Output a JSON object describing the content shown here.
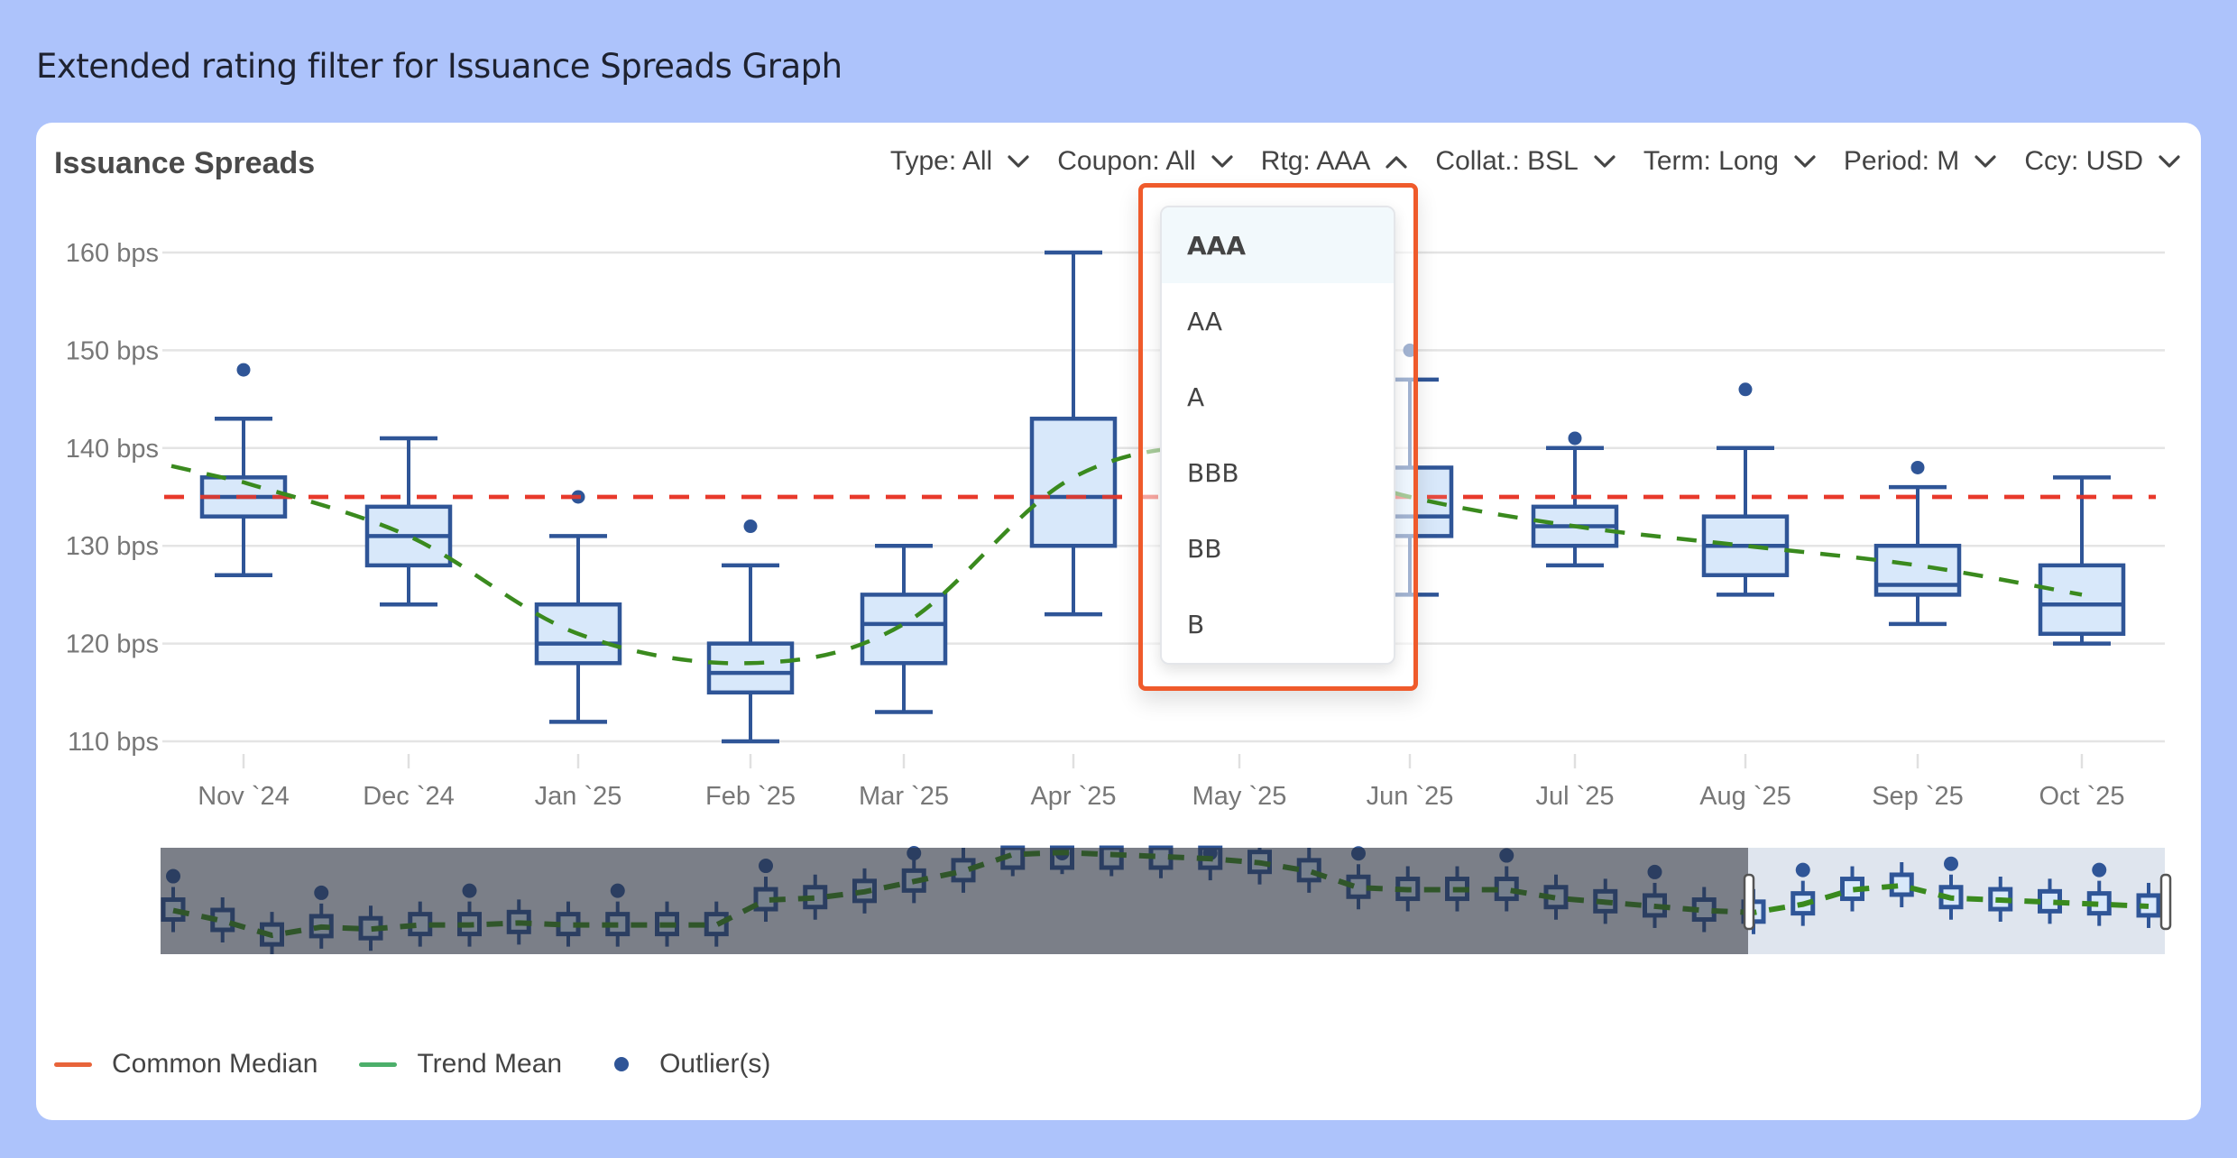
{
  "page": {
    "title": "Extended rating filter for Issuance Spreads Graph"
  },
  "card": {
    "title": "Issuance Spreads",
    "filters": [
      {
        "label": "Type: All",
        "icon": "chevron-down-icon",
        "open": false
      },
      {
        "label": "Coupon: All",
        "icon": "chevron-down-icon",
        "open": false
      },
      {
        "label": "Rtg: AAA",
        "icon": "chevron-up-icon",
        "open": true
      },
      {
        "label": "Collat.: BSL",
        "icon": "chevron-down-icon",
        "open": false
      },
      {
        "label": "Term: Long",
        "icon": "chevron-down-icon",
        "open": false
      },
      {
        "label": "Period: M",
        "icon": "chevron-down-icon",
        "open": false
      },
      {
        "label": "Ccy: USD",
        "icon": "chevron-down-icon",
        "open": false
      }
    ]
  },
  "rating_dropdown": {
    "selected": "AAA",
    "options": [
      "AAA",
      "AA",
      "A",
      "BBB",
      "BB",
      "B"
    ]
  },
  "legend": [
    {
      "label": "Common Median",
      "color": "#e8643a",
      "kind": "line"
    },
    {
      "label": "Trend Mean",
      "color": "#4caf6a",
      "kind": "line"
    },
    {
      "label": "Outlier(s)",
      "color": "#2f5597",
      "kind": "dot"
    }
  ],
  "chart_data": {
    "type": "boxplot",
    "title": "Issuance Spreads",
    "xlabel": "",
    "ylabel": "",
    "y_unit": "bps",
    "ylim": [
      110,
      160
    ],
    "yticks": [
      110,
      120,
      130,
      140,
      150,
      160
    ],
    "ytick_labels": [
      "110 bps",
      "120 bps",
      "130 bps",
      "140 bps",
      "150 bps",
      "160 bps"
    ],
    "grid": true,
    "categories": [
      "Nov `24",
      "Dec `24",
      "Jan `25",
      "Feb `25",
      "Mar `25",
      "Apr `25",
      "May `25",
      "Jun `25",
      "Jul `25",
      "Aug `25",
      "Sep `25",
      "Oct `25"
    ],
    "boxes": [
      {
        "category": "Nov `24",
        "min": 127,
        "q1": 133,
        "median": 135,
        "q3": 137,
        "max": 143,
        "outliers": [
          148
        ]
      },
      {
        "category": "Dec `24",
        "min": 124,
        "q1": 128,
        "median": 131,
        "q3": 134,
        "max": 141,
        "outliers": []
      },
      {
        "category": "Jan `25",
        "min": 112,
        "q1": 118,
        "median": 120,
        "q3": 124,
        "max": 131,
        "outliers": [
          135
        ]
      },
      {
        "category": "Feb `25",
        "min": 110,
        "q1": 115,
        "median": 117,
        "q3": 120,
        "max": 128,
        "outliers": [
          132
        ]
      },
      {
        "category": "Mar `25",
        "min": 113,
        "q1": 118,
        "median": 122,
        "q3": 125,
        "max": 130,
        "outliers": []
      },
      {
        "category": "Apr `25",
        "min": 123,
        "q1": 130,
        "median": 135,
        "q3": 143,
        "max": 160,
        "outliers": []
      },
      {
        "category": "May `25",
        "hidden": true
      },
      {
        "category": "Jun `25",
        "min": 125,
        "q1": 131,
        "median": 133,
        "q3": 138,
        "max": 147,
        "outliers": [
          150
        ]
      },
      {
        "category": "Jul `25",
        "min": 128,
        "q1": 130,
        "median": 132,
        "q3": 134,
        "max": 140,
        "outliers": [
          141
        ]
      },
      {
        "category": "Aug `25",
        "min": 125,
        "q1": 127,
        "median": 130,
        "q3": 133,
        "max": 140,
        "outliers": [
          146
        ]
      },
      {
        "category": "Sep `25",
        "min": 122,
        "q1": 125,
        "median": 126,
        "q3": 130,
        "max": 136,
        "outliers": [
          138
        ]
      },
      {
        "category": "Oct `25",
        "min": 120,
        "q1": 121,
        "median": 124,
        "q3": 128,
        "max": 137,
        "outliers": []
      }
    ],
    "series": [
      {
        "name": "Common Median",
        "style": "dashed",
        "color": "#e8392b",
        "value": 135
      },
      {
        "name": "Trend Mean",
        "style": "dashed",
        "color": "#3a8a1e",
        "values": [
          136.5,
          131,
          121,
          118,
          122,
          137,
          140,
          135,
          132,
          130,
          128,
          125
        ]
      }
    ],
    "navigator": {
      "selected_range": [
        "Nov `24",
        "Oct `25"
      ],
      "medians_overview": [
        133,
        128,
        121,
        125,
        124,
        126,
        126,
        127,
        126,
        126,
        126,
        126,
        138,
        139,
        142,
        147,
        152,
        160,
        161,
        160,
        159,
        158,
        156,
        152,
        144,
        143,
        143,
        143,
        139,
        137,
        135,
        133,
        132,
        136,
        143,
        145,
        139,
        138,
        137,
        136,
        135
      ]
    }
  }
}
